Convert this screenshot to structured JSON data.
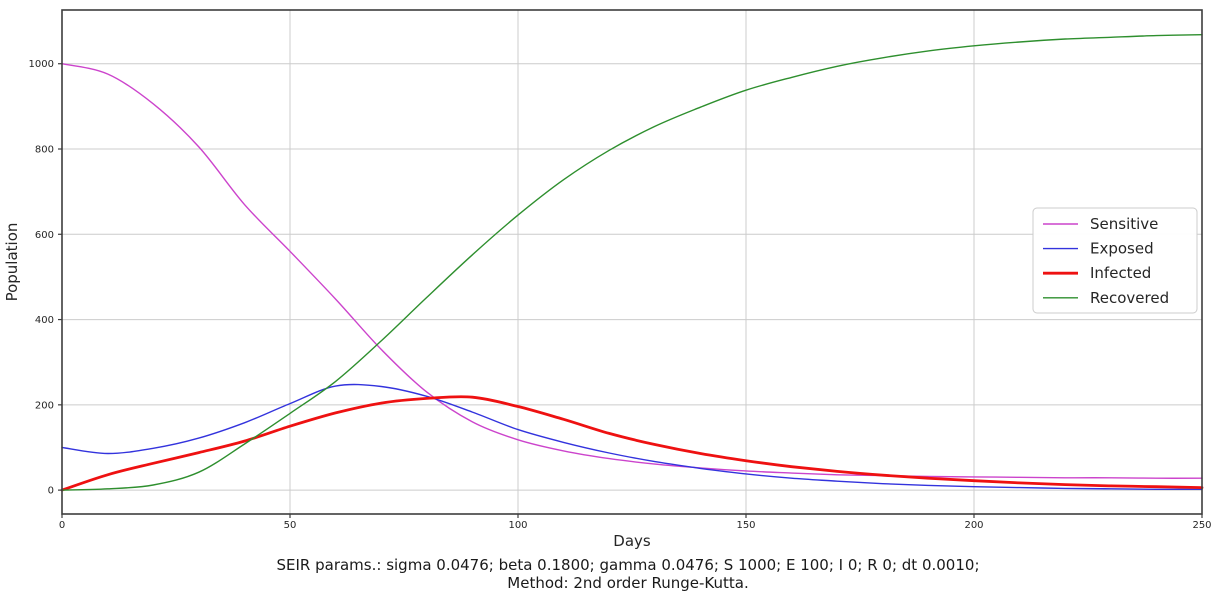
{
  "figure": {
    "subtitle_line1": "SEIR params.: sigma 0.0476; beta 0.1800; gamma 0.0476; S 1000; E 100; I 0; R 0; dt 0.0010;",
    "subtitle_line2": "Method: 2nd order Runge-Kutta."
  },
  "colors": {
    "background": "#ffffff",
    "grid": "#cccccc",
    "spine": "#3d3d3d",
    "tick": "#3d3d3d",
    "text": "#262626",
    "legend_border": "#cccccc",
    "legend_fill": "#ffffff"
  },
  "chart_data": {
    "type": "line",
    "title": "",
    "xlabel": "Days",
    "ylabel": "Population",
    "xlim": [
      0,
      250
    ],
    "ylim": [
      -56,
      1126
    ],
    "x_ticks": [
      0,
      50,
      100,
      150,
      200,
      250
    ],
    "y_ticks": [
      0,
      200,
      400,
      600,
      800,
      1000
    ],
    "grid": true,
    "legend_position": "center right",
    "x": [
      0,
      10,
      20,
      30,
      40,
      50,
      60,
      70,
      80,
      90,
      100,
      110,
      120,
      130,
      140,
      150,
      160,
      170,
      180,
      190,
      200,
      210,
      220,
      230,
      240,
      250
    ],
    "series": [
      {
        "name": "Sensitive",
        "color": "#cc44cc",
        "line_width": 1.4,
        "values": [
          1000,
          976,
          906,
          805,
          670,
          560,
          448,
          330,
          230,
          160,
          118,
          92,
          74,
          61,
          52,
          45,
          40,
          36,
          34,
          32,
          31,
          30,
          29,
          29,
          28,
          28
        ]
      },
      {
        "name": "Exposed",
        "color": "#3333dd",
        "line_width": 1.4,
        "values": [
          100,
          86,
          98,
          122,
          158,
          203,
          244,
          243,
          220,
          183,
          142,
          112,
          87,
          67,
          51,
          38,
          28,
          21,
          15,
          11,
          8,
          6,
          4,
          3,
          2,
          2
        ]
      },
      {
        "name": "Infected",
        "color": "#ee1111",
        "line_width": 2.8,
        "values": [
          0,
          36,
          63,
          88,
          115,
          150,
          181,
          204,
          215,
          218,
          196,
          166,
          133,
          107,
          86,
          69,
          55,
          44,
          35,
          28,
          22,
          17,
          13,
          10,
          8,
          6
        ]
      },
      {
        "name": "Recovered",
        "color": "#2e8f2e",
        "line_width": 1.4,
        "values": [
          0,
          3,
          12,
          42,
          108,
          180,
          255,
          350,
          452,
          552,
          645,
          728,
          797,
          853,
          898,
          938,
          968,
          994,
          1014,
          1030,
          1042,
          1051,
          1058,
          1062,
          1066,
          1068
        ]
      }
    ]
  }
}
